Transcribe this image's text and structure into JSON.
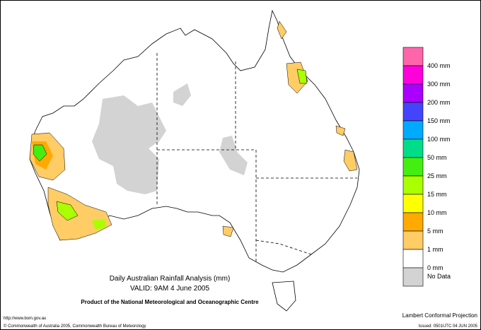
{
  "header": {
    "title": "Daily Australian Rainfall Analysis (mm)",
    "valid": "VALID: 9AM  4 June 2005",
    "product": "Product of the National Meteorological and Oceanographic Centre"
  },
  "footer": {
    "url": "http://www.bom.gov.au",
    "copyright": "© Commonwealth of Australia 2005, Commonwealth Bureau of Meteorology",
    "projection": "Lambert Conformal Projection",
    "issued": "Issued: 0501UTC 04 JUN 2005"
  },
  "legend": {
    "colors": [
      "#ff66aa",
      "#ff00dd",
      "#aa00ff",
      "#4444ff",
      "#00aaff",
      "#00dd88",
      "#44ee11",
      "#aaff00",
      "#ffff00",
      "#ffaa00",
      "#ffcc66",
      "#ffffff",
      "#d3d3d3"
    ],
    "labels": [
      "400 mm",
      "300 mm",
      "200 mm",
      "150 mm",
      "100 mm",
      "50 mm",
      "25 mm",
      "15 mm",
      "10 mm",
      "5 mm",
      "1 mm",
      "0 mm",
      "No Data"
    ]
  }
}
